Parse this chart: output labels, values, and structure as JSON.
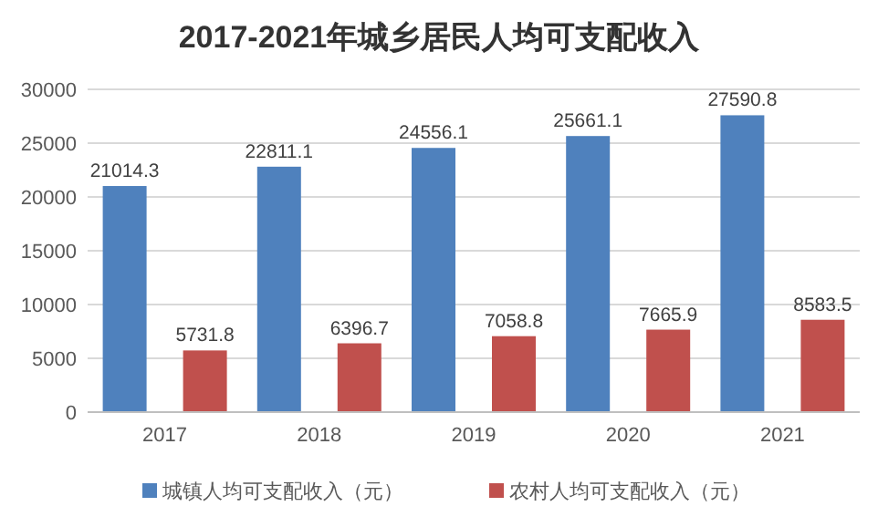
{
  "chart_data": {
    "type": "bar",
    "title": "2017-2021年城乡居民人均可支配收入",
    "categories": [
      "2017",
      "2018",
      "2019",
      "2020",
      "2021"
    ],
    "series": [
      {
        "name": "城镇人均可支配收入（元）",
        "color": "#4f81bd",
        "values": [
          21014.3,
          22811.1,
          24556.1,
          25661.1,
          27590.8
        ]
      },
      {
        "name": "农村人均可支配收入（元）",
        "color": "#c0504d",
        "values": [
          5731.8,
          6396.7,
          7058.8,
          7665.9,
          8583.5
        ]
      }
    ],
    "ylim": [
      0,
      30000
    ],
    "yticks": [
      0,
      5000,
      10000,
      15000,
      20000,
      25000,
      30000
    ],
    "grid": "y",
    "legend": "bottom",
    "data_labels": true
  }
}
